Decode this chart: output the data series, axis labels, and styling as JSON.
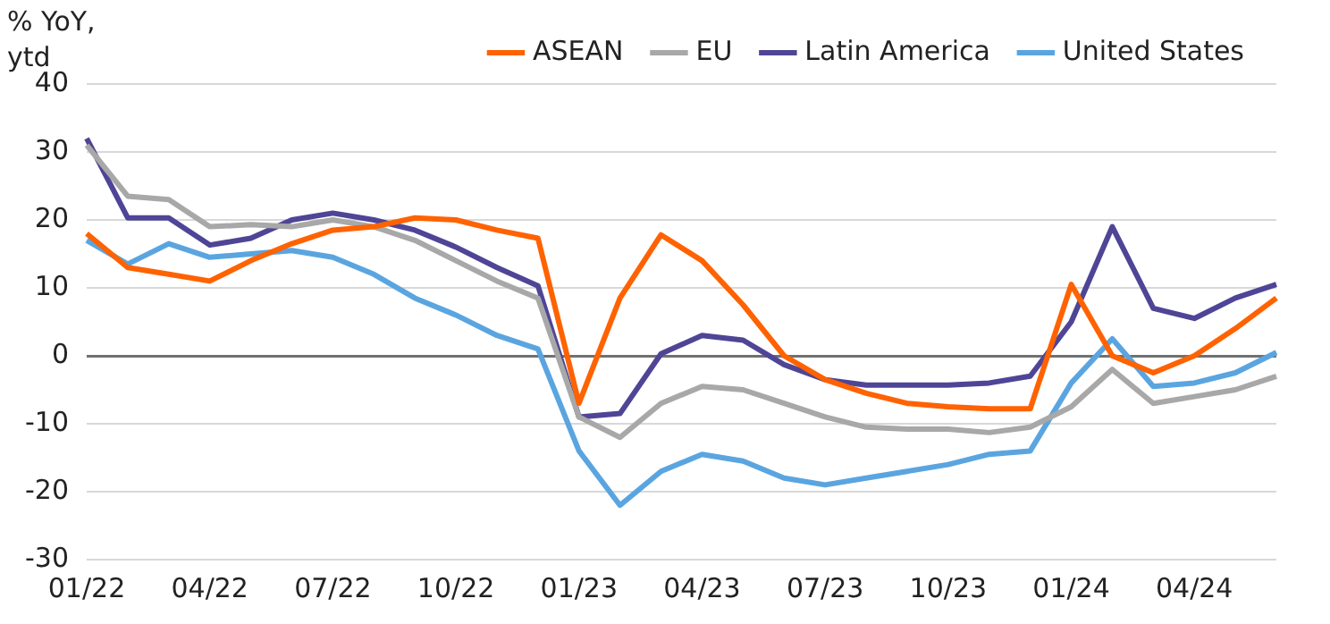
{
  "chart_data": {
    "type": "line",
    "ylabel": "% YoY, ytd",
    "categories": [
      "01/22",
      null,
      null,
      "04/22",
      null,
      null,
      "07/22",
      null,
      null,
      "10/22",
      null,
      null,
      "01/23",
      null,
      null,
      "04/23",
      null,
      null,
      "07/23",
      null,
      null,
      "10/23",
      null,
      null,
      "01/24",
      null,
      null,
      "04/24",
      null,
      null
    ],
    "series": [
      {
        "name": "ASEAN",
        "color": "#ff6200",
        "values": [
          18,
          13,
          12,
          11,
          14,
          16.5,
          18.5,
          19,
          20.3,
          20,
          18.5,
          17.3,
          -7,
          8.5,
          17.8,
          14,
          7.5,
          0,
          -3.5,
          -5.5,
          -7,
          -7.5,
          -7.8,
          -7.8,
          10.5,
          0,
          -2.5,
          0,
          4,
          8.5
        ]
      },
      {
        "name": "EU",
        "color": "#a8a8a8",
        "values": [
          31,
          23.5,
          23,
          19,
          19.3,
          19,
          20,
          19,
          17,
          14,
          11,
          8.5,
          -9,
          -12,
          -7,
          -4.5,
          -5,
          -7,
          -9,
          -10.5,
          -10.8,
          -10.8,
          -11.3,
          -10.5,
          -7.5,
          -2,
          -7,
          -6,
          -5,
          -3
        ]
      },
      {
        "name": "Latin America",
        "color": "#4f4596",
        "values": [
          32,
          20.3,
          20.3,
          16.3,
          17.3,
          20,
          21,
          20,
          18.5,
          16,
          13,
          10.3,
          -9,
          -8.5,
          0.3,
          3,
          2.3,
          -1.3,
          -3.5,
          -4.3,
          -4.3,
          -4.3,
          -4,
          -3,
          5,
          19,
          7,
          5.5,
          8.5,
          10.5
        ]
      },
      {
        "name": "United States",
        "color": "#5aa5e0",
        "values": [
          17,
          13.5,
          16.5,
          14.5,
          15,
          15.5,
          14.5,
          12,
          8.5,
          6,
          3,
          1,
          -14,
          -22,
          -17,
          -14.5,
          -15.5,
          -18,
          -19,
          -18,
          -17,
          -16,
          -14.5,
          -14,
          -4,
          2.5,
          -4.5,
          -4,
          -2.5,
          0.5
        ]
      }
    ],
    "ylim": [
      -30,
      40
    ],
    "yticks": [
      -30,
      -20,
      -10,
      0,
      10,
      20,
      30,
      40
    ],
    "grid": "y",
    "legend": "top",
    "marker": "none",
    "line_style": "solid"
  }
}
